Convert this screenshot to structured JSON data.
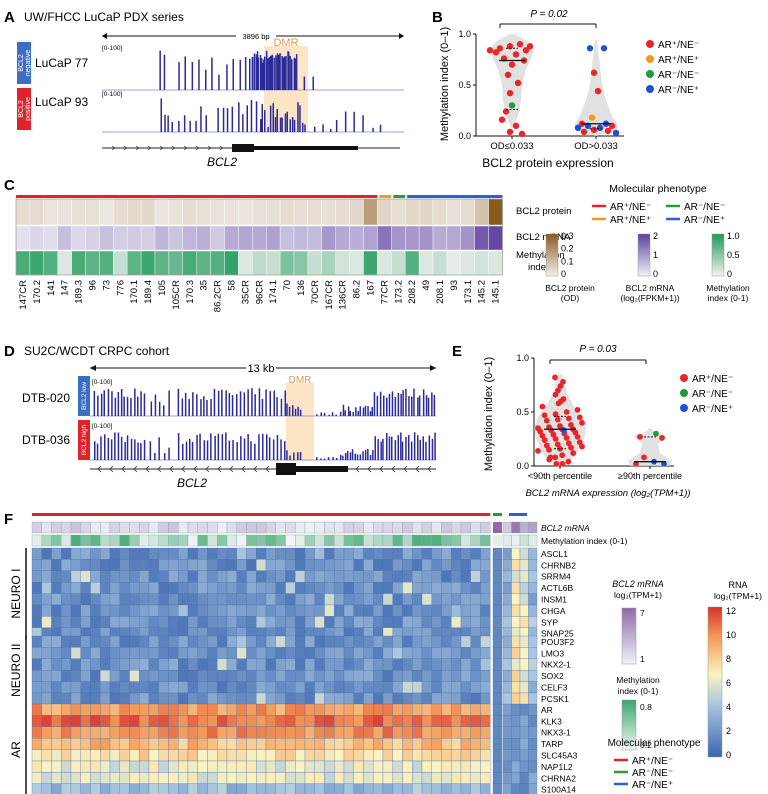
{
  "panelA": {
    "letter": "A",
    "title": "UW/FHCC LuCaP PDX series",
    "span": "3896 bp",
    "dmr": "DMR",
    "range": "[0-100]",
    "tracks": [
      {
        "tag_line1": "BCL2",
        "tag_line2": "negative",
        "sample": "LuCaP 77",
        "color": "#3a6fc4"
      },
      {
        "tag_line1": "BCL2",
        "tag_line2": "positive",
        "sample": "LuCaP 93",
        "color": "#e0232a"
      }
    ],
    "gene": "BCL2"
  },
  "panelB": {
    "letter": "B",
    "pvalue": "P = 0.02",
    "ylabel": "Methylation index (0–1)",
    "xlabel": "BCL2 protein expression",
    "groups": [
      "OD≤0.033",
      "OD>0.033"
    ],
    "yticks": [
      "0.0",
      "0.5",
      "1.0"
    ],
    "legend": [
      {
        "label": "AR⁺/NE⁻",
        "color": "#e8262a"
      },
      {
        "label": "AR⁺/NE⁺",
        "color": "#f39a1f"
      },
      {
        "label": "AR⁻/NE⁻",
        "color": "#1f9a3a"
      },
      {
        "label": "AR⁻/NE⁺",
        "color": "#1f4fd6"
      }
    ]
  },
  "panelC": {
    "letter": "C",
    "rows": [
      "BCL2 protein",
      "BCL2 mRNA",
      "Methylation",
      "index"
    ],
    "samples": [
      "147CR",
      "170.2",
      "141",
      "147",
      "189.3",
      "96",
      "73",
      "776",
      "170.1",
      "189.4",
      "105",
      "105CR",
      "170.3",
      "35",
      "86.2CR",
      "58",
      "35CR",
      "96CR",
      "174.1",
      "70",
      "136",
      "70CR",
      "167CR",
      "136CR",
      "86.2",
      "167",
      "77CR",
      "173.2",
      "208.2",
      "49",
      "208.1",
      "93",
      "173.1",
      "145.2",
      "145.1"
    ],
    "legend_title": "Molecular phenotype",
    "legend": [
      {
        "label": "AR⁺/NE⁻",
        "color": "#e0232a"
      },
      {
        "label": "AR⁻/NE⁻",
        "color": "#2a9a3a"
      },
      {
        "label": "AR⁺/NE⁺",
        "color": "#f39a1f"
      },
      {
        "label": "AR⁻/NE⁺",
        "color": "#2a5fd6"
      }
    ],
    "scale_protein": {
      "ticks": [
        "0.3",
        "0.2",
        "0.1",
        "0"
      ],
      "label1": "BCL2 protein",
      "label2": "(OD)"
    },
    "scale_mrna": {
      "ticks": [
        "2",
        "1",
        "0"
      ],
      "label1": "BCL2 mRNA",
      "label2": "(log₂(FPKM+1))"
    },
    "scale_meth": {
      "ticks": [
        "1.0",
        "0.5",
        "0"
      ],
      "label1": "Methylation",
      "label2": "index (0-1)"
    }
  },
  "panelD": {
    "letter": "D",
    "title": "SU2C/WCDT CRPC cohort",
    "span": "13 kb",
    "dmr": "DMR",
    "range": "[0-100]",
    "tracks": [
      {
        "tag": "BCL2 low",
        "sample": "DTB-020",
        "color": "#3a6fc4"
      },
      {
        "tag": "BCL2 high",
        "sample": "DTB-036",
        "color": "#e0232a"
      }
    ],
    "gene": "BCL2"
  },
  "panelE": {
    "letter": "E",
    "pvalue": "P = 0.03",
    "ylabel": "Methylation index (0–1)",
    "xlabel": "BCL2 mRNA expression (log₂(TPM+1))",
    "groups": [
      "<90th percentile",
      "≥90th percentile"
    ],
    "yticks": [
      "0.0",
      "0.5",
      "1.0"
    ],
    "legend": [
      {
        "label": "AR⁺/NE⁻",
        "color": "#e8262a"
      },
      {
        "label": "AR⁻/NE⁻",
        "color": "#1f9a3a"
      },
      {
        "label": "AR⁻/NE⁺",
        "color": "#1f4fd6"
      }
    ]
  },
  "panelF": {
    "letter": "F",
    "top_rows": [
      "BCL2 mRNA",
      "Methylation index (0-1)"
    ],
    "groups": [
      {
        "name": "NEURO I",
        "genes": [
          "ASCL1",
          "CHRNB2",
          "SRRM4",
          "ACTL6B",
          "INSM1",
          "CHGA",
          "SYP",
          "SNAP25"
        ]
      },
      {
        "name": "NEURO II",
        "genes": [
          "POU3F2",
          "LMO3",
          "NKX2-1",
          "SOX2",
          "CELF3",
          "PCSK1"
        ]
      },
      {
        "name": "AR",
        "genes": [
          "AR",
          "KLK3",
          "NKX3-1",
          "TARP",
          "SLC45A3",
          "NAP1L2",
          "CHRNA2",
          "S100A14"
        ]
      }
    ],
    "scale_mrna": {
      "label1": "BCL2 mRNA",
      "label2": "log₂(TPM+1)",
      "ticks": [
        "7",
        "1"
      ]
    },
    "scale_meth": {
      "label1": "Methylation",
      "label2": "index (0-1)",
      "ticks": [
        "0.8",
        "0.2"
      ]
    },
    "scale_rna": {
      "label1": "RNA",
      "label2": "log₂(TPM+1)",
      "ticks": [
        "12",
        "10",
        "8",
        "6",
        "4",
        "2",
        "0"
      ]
    },
    "legend_title": "Molecular phenotype",
    "legend": [
      {
        "label": "AR⁺/NE⁻",
        "color": "#e0232a"
      },
      {
        "label": "AR⁻/NE⁻",
        "color": "#2a9a3a"
      },
      {
        "label": "AR⁻/NE⁺",
        "color": "#2a5fd6"
      }
    ]
  }
}
